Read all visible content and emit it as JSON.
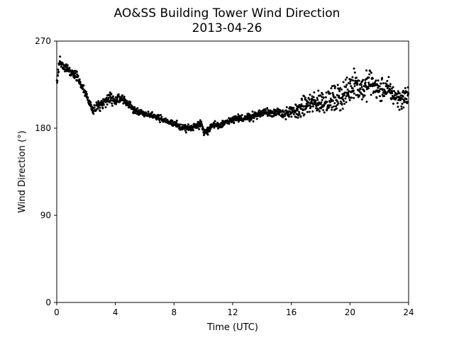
{
  "chart_data": {
    "type": "scatter",
    "title": "AO&SS Building Tower Wind Direction",
    "subtitle": "2013-04-26",
    "xlabel": "Time (UTC)",
    "ylabel": "Wind Direction (°)",
    "xlim": [
      0,
      24
    ],
    "ylim": [
      0,
      270
    ],
    "xticks": [
      0,
      4,
      8,
      12,
      16,
      20,
      24
    ],
    "yticks": [
      0,
      90,
      180,
      270
    ],
    "grid": false,
    "marker_color": "#000000",
    "trend_x": [
      0.0,
      0.2,
      0.4,
      0.7,
      1.0,
      1.3,
      1.5,
      1.8,
      2.0,
      2.2,
      2.4,
      2.6,
      2.8,
      3.0,
      3.3,
      3.6,
      3.8,
      4.0,
      4.3,
      4.6,
      4.9,
      5.2,
      5.5,
      5.8,
      6.2,
      6.6,
      7.0,
      7.5,
      8.0,
      8.5,
      9.0,
      9.4,
      9.8,
      10.1,
      10.3,
      10.6,
      11.0,
      11.5,
      12.0,
      12.5,
      13.0,
      13.5,
      14.0,
      14.5,
      15.0,
      15.5,
      16.0,
      16.5,
      17.0,
      17.5,
      18.0,
      18.5,
      19.0,
      19.5,
      20.0,
      20.3,
      20.6,
      21.0,
      21.3,
      21.7,
      22.0,
      22.3,
      22.7,
      23.0,
      23.5,
      24.0
    ],
    "trend_y": [
      228,
      251,
      245,
      242,
      236,
      235,
      230,
      222,
      215,
      207,
      200,
      198,
      203,
      204,
      208,
      211,
      210,
      209,
      212,
      210,
      205,
      200,
      197,
      196,
      194,
      193,
      190,
      187,
      184,
      181,
      180,
      182,
      186,
      175,
      178,
      183,
      182,
      186,
      188,
      190,
      191,
      193,
      196,
      197,
      196,
      195,
      196,
      199,
      204,
      206,
      208,
      209,
      210,
      213,
      220,
      230,
      222,
      221,
      228,
      224,
      218,
      220,
      219,
      214,
      210,
      215
    ],
    "noise": [
      [
        0,
        3
      ],
      [
        2.5,
        3
      ],
      [
        3.5,
        5
      ],
      [
        4.5,
        3
      ],
      [
        6,
        2
      ],
      [
        8,
        2.5
      ],
      [
        9.8,
        3
      ],
      [
        11,
        2.5
      ],
      [
        14,
        3
      ],
      [
        15.5,
        3.5
      ],
      [
        16.5,
        6
      ],
      [
        17.5,
        8
      ],
      [
        19,
        9
      ],
      [
        20,
        11
      ],
      [
        21,
        10
      ],
      [
        22,
        9
      ],
      [
        23,
        7
      ],
      [
        24,
        7
      ]
    ],
    "n_points": 1440
  }
}
